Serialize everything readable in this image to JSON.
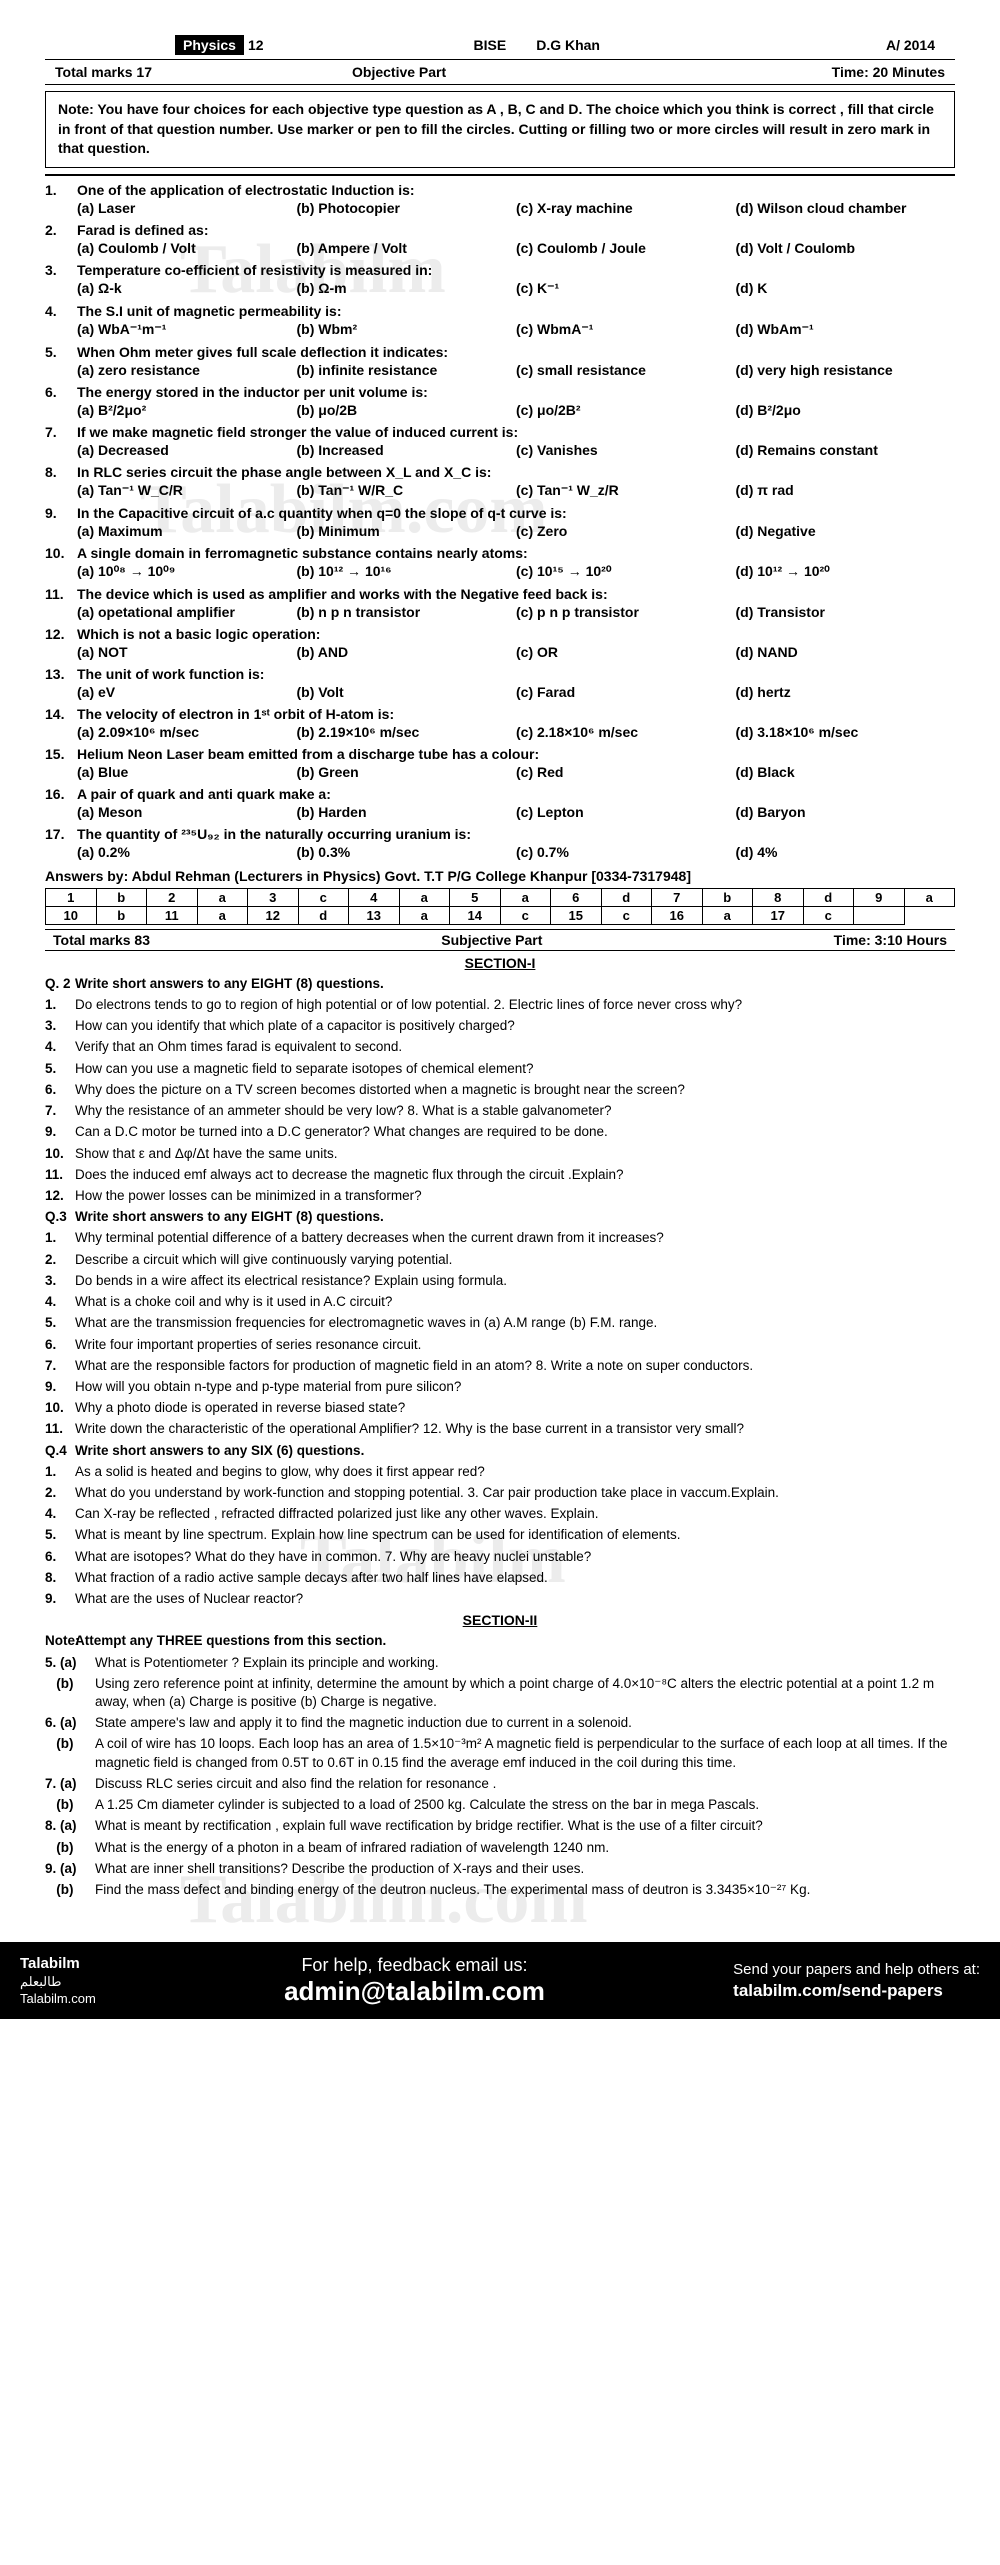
{
  "header": {
    "subject": "Physics",
    "class": "12",
    "board": "BISE",
    "district": "D.G Khan",
    "session": "A/ 2014"
  },
  "objective": {
    "total_marks": "Total marks 17",
    "part": "Objective Part",
    "time": "Time: 20 Minutes",
    "note": "Note: You have four choices for each objective type question as A , B, C and D. The choice which you think is correct , fill that circle in front of that question number. Use marker or pen to fill the circles. Cutting or filling two or more circles will result in zero mark in that question."
  },
  "mcqs": [
    {
      "n": "1.",
      "q": "One of the application of electrostatic Induction is:",
      "a": "(a) Laser",
      "b": "(b) Photocopier",
      "c": "(c) X-ray machine",
      "d": "(d) Wilson cloud chamber"
    },
    {
      "n": "2.",
      "q": "Farad is defined as:",
      "a": "(a) Coulomb / Volt",
      "b": "(b) Ampere / Volt",
      "c": "(c) Coulomb / Joule",
      "d": "(d) Volt / Coulomb"
    },
    {
      "n": "3.",
      "q": "Temperature co-efficient of resistivity is measured in:",
      "a": "(a) Ω-k",
      "b": "(b) Ω-m",
      "c": "(c) K⁻¹",
      "d": "(d) K"
    },
    {
      "n": "4.",
      "q": "The S.I unit of magnetic permeability is:",
      "a": "(a) WbA⁻¹m⁻¹",
      "b": "(b) Wbm²",
      "c": "(c) WbmA⁻¹",
      "d": "(d) WbAm⁻¹"
    },
    {
      "n": "5.",
      "q": "When Ohm meter gives full scale deflection it indicates:",
      "a": "(a) zero resistance",
      "b": "(b) infinite resistance",
      "c": "(c) small resistance",
      "d": "(d) very high resistance"
    },
    {
      "n": "6.",
      "q": "The energy stored in the inductor per unit volume is:",
      "a": "(a) B²/2μo²",
      "b": "(b) μo/2B",
      "c": "(c) μo/2B²",
      "d": "(d) B²/2μo"
    },
    {
      "n": "7.",
      "q": "If we make magnetic field stronger the value of induced current is:",
      "a": "(a) Decreased",
      "b": "(b) Increased",
      "c": "(c) Vanishes",
      "d": "(d) Remains constant"
    },
    {
      "n": "8.",
      "q": "In RLC series circuit the phase angle between X_L and X_C is:",
      "a": "(a) Tan⁻¹ W_C/R",
      "b": "(b) Tan⁻¹ W/R_C",
      "c": "(c) Tan⁻¹ W_z/R",
      "d": "(d) π rad"
    },
    {
      "n": "9.",
      "q": "In the Capacitive circuit of a.c quantity when q=0 the slope of q-t curve is:",
      "a": "(a) Maximum",
      "b": "(b) Minimum",
      "c": "(c) Zero",
      "d": "(d) Negative"
    },
    {
      "n": "10.",
      "q": "A single domain in ferromagnetic substance contains nearly atoms:",
      "a": "(a) 10⁰⁸ → 10⁰⁹",
      "b": "(b) 10¹² → 10¹⁶",
      "c": "(c) 10¹⁵ → 10²⁰",
      "d": "(d) 10¹² → 10²⁰"
    },
    {
      "n": "11.",
      "q": "The device which is used as amplifier and works with the Negative feed back is:",
      "a": "(a) opetational amplifier",
      "b": "(b) n p n transistor",
      "c": "(c) p n p transistor",
      "d": "(d) Transistor"
    },
    {
      "n": "12.",
      "q": "Which is not a basic logic operation:",
      "a": "(a) NOT",
      "b": "(b) AND",
      "c": "(c) OR",
      "d": "(d) NAND"
    },
    {
      "n": "13.",
      "q": "The unit of work function is:",
      "a": "(a) eV",
      "b": "(b) Volt",
      "c": "(c) Farad",
      "d": "(d) hertz"
    },
    {
      "n": "14.",
      "q": "The velocity of electron in 1ˢᵗ orbit of H-atom is:",
      "a": "(a) 2.09×10⁶ m/sec",
      "b": "(b) 2.19×10⁶ m/sec",
      "c": "(c) 2.18×10⁶ m/sec",
      "d": "(d) 3.18×10⁶ m/sec"
    },
    {
      "n": "15.",
      "q": "Helium Neon Laser beam emitted from a discharge tube has a colour:",
      "a": "(a) Blue",
      "b": "(b) Green",
      "c": "(c) Red",
      "d": "(d) Black"
    },
    {
      "n": "16.",
      "q": "A pair of quark and anti quark make a:",
      "a": "(a) Meson",
      "b": "(b) Harden",
      "c": "(c) Lepton",
      "d": "(d) Baryon"
    },
    {
      "n": "17.",
      "q": "The quantity of ²³⁵U₉₂ in the naturally occurring uranium is:",
      "a": "(a) 0.2%",
      "b": "(b) 0.3%",
      "c": "(c) 0.7%",
      "d": "(d) 4%"
    }
  ],
  "answers_by": "Answers by: Abdul Rehman (Lecturers in Physics) Govt. T.T P/G College Khanpur [0334-7317948]",
  "answer_key_row1": [
    "1",
    "b",
    "2",
    "a",
    "3",
    "c",
    "4",
    "a",
    "5",
    "a",
    "6",
    "d",
    "7",
    "b",
    "8",
    "d",
    "9",
    "a"
  ],
  "answer_key_row2": [
    "10",
    "b",
    "11",
    "a",
    "12",
    "d",
    "13",
    "a",
    "14",
    "c",
    "15",
    "c",
    "16",
    "a",
    "17",
    "c",
    ""
  ],
  "subjective": {
    "total_marks": "Total marks 83",
    "part": "Subjective Part",
    "time": "Time: 3:10 Hours",
    "section1": "SECTION-I",
    "section2": "SECTION-II"
  },
  "q2_head": "Write short answers to any EIGHT (8) questions.",
  "q2": [
    "Do electrons tends to go to region of high potential or of low potential.    2.   Electric lines of force never cross why?",
    "How can you identify that which plate of a capacitor is positively charged?",
    "Verify that an Ohm times farad is equivalent to second.",
    "How can you use a magnetic field to separate isotopes of chemical element?",
    "Why does the picture on a TV screen becomes distorted when a magnetic is brought near the screen?",
    "Why the resistance of an ammeter should be very low?          8.    What is a stable galvanometer?",
    "Can a D.C motor be turned into a D.C generator? What changes are required to be done.",
    "Show that ε and Δφ/Δt have the same units.",
    "Does the induced emf always act to decrease the magnetic flux through the circuit .Explain?",
    "How the power losses can be minimized in a transformer?"
  ],
  "q2_nums": [
    "1.",
    "3.",
    "4.",
    "5.",
    "6.",
    "7.",
    "9.",
    "10.",
    "11.",
    "12."
  ],
  "q3_head": "Write short answers to any EIGHT (8) questions.",
  "q3": [
    "Why terminal potential difference of a battery decreases when the current drawn from it increases?",
    "Describe a circuit which will give continuously varying potential.",
    "Do bends in a wire affect its electrical resistance? Explain using formula.",
    "What is a choke coil and why is it used in A.C circuit?",
    "What are the transmission frequencies for electromagnetic waves in (a) A.M range  (b) F.M. range.",
    "Write four important properties of series resonance circuit.",
    "What are the responsible factors for production of magnetic field in an atom?    8.   Write a note on super conductors.",
    "How will you obtain n-type and p-type material from pure silicon?",
    "Why a photo diode is operated in reverse biased state?",
    "Write down the characteristic of the operational Amplifier?    12. Why is the base current in a transistor very small?"
  ],
  "q3_nums": [
    "1.",
    "2.",
    "3.",
    "4.",
    "5.",
    "6.",
    "7.",
    "9.",
    "10.",
    "11."
  ],
  "q4_head": "Write short answers to any SIX (6) questions.",
  "q4": [
    "As a solid is heated and begins to glow, why does it first appear red?",
    "What do you understand by work-function and stopping potential.  3. Car pair production take place in vaccum.Explain.",
    "Can X-ray be reflected , refracted diffracted polarized just like any other waves. Explain.",
    "What is meant by line spectrum. Explain how line spectrum can be used for identification of elements.",
    "What are isotopes? What do they have in common.        7. Why are heavy nuclei unstable?",
    "What fraction of a radio active sample decays after two half lines have elapsed.",
    "What are the uses of Nuclear reactor?"
  ],
  "q4_nums": [
    "1.",
    "2.",
    "4.",
    "5.",
    "6.",
    "8.",
    "9."
  ],
  "sec2_note": "Attempt any THREE questions from this section.",
  "sec2": [
    {
      "n": "5. (a)",
      "t": "What is Potentiometer ? Explain its principle and working."
    },
    {
      "n": "   (b)",
      "t": "Using zero reference point at infinity, determine the amount by which a point charge of 4.0×10⁻⁸C alters the electric potential at a point 1.2 m away, when (a) Charge is positive (b) Charge is negative."
    },
    {
      "n": "6. (a)",
      "t": "State ampere's law and apply it to find the magnetic induction due to current in a solenoid."
    },
    {
      "n": "   (b)",
      "t": "A coil of wire has 10 loops. Each loop has an area of 1.5×10⁻³m² A magnetic field is perpendicular to the surface of each loop at all times. If the magnetic field is changed from 0.5T to 0.6T in 0.15 find the average emf induced in the coil during this time."
    },
    {
      "n": "7. (a)",
      "t": "Discuss RLC series circuit and also find the relation for resonance ."
    },
    {
      "n": "   (b)",
      "t": "A 1.25 Cm diameter cylinder is subjected to a load of 2500 kg. Calculate the stress on the bar in mega Pascals."
    },
    {
      "n": "8. (a)",
      "t": "What is meant by rectification , explain full wave rectification by bridge rectifier. What is the use of a filter circuit?"
    },
    {
      "n": "   (b)",
      "t": "What is the energy of a photon in a beam of infrared radiation of wavelength 1240 nm."
    },
    {
      "n": "9. (a)",
      "t": "What are inner shell transitions? Describe the production of X-rays and their uses."
    },
    {
      "n": "   (b)",
      "t": "Find the mass defect and binding energy of the deutron nucleus. The experimental mass of deutron is 3.3435×10⁻²⁷ Kg."
    }
  ],
  "footer": {
    "brand1": "Talabilm",
    "brand2": "طالبعلم",
    "brand3": "Talabilm.com",
    "help1": "For help, feedback email us:",
    "help2": "admin@talabilm.com",
    "send1": "Send your papers and help others at:",
    "send2": "talabilm.com/send-papers"
  },
  "watermarks": {
    "w1": "Talabilm",
    "w2": "Talabilm.com",
    "w3": "Talabilm",
    "w4": "Talabilm.com"
  }
}
